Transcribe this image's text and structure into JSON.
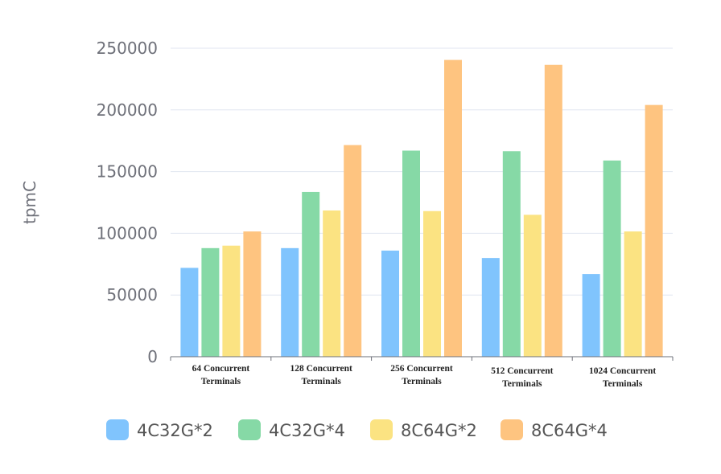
{
  "chart_data": {
    "type": "bar",
    "ylabel": "tpmC",
    "ylim": [
      0,
      250000
    ],
    "yticks": [
      "0",
      "50000",
      "100000",
      "150000",
      "200000",
      "250000"
    ],
    "grid": true,
    "legend_placement": "bottom",
    "categories": [
      [
        "64 Concurrent",
        "Terminals"
      ],
      [
        "128 Concurrent",
        "Terminals"
      ],
      [
        "256 Concurrent",
        "Terminals"
      ],
      [
        "512 Concurrent",
        "Terminals"
      ],
      [
        "1024 Concurrent",
        "Terminals"
      ]
    ],
    "series": [
      {
        "name": "4C32G*2",
        "color": "#80c4fd",
        "values": [
          72000,
          88000,
          86000,
          80000,
          67000
        ]
      },
      {
        "name": "4C32G*4",
        "color": "#86d9a6",
        "values": [
          88000,
          133500,
          167000,
          166500,
          159000
        ]
      },
      {
        "name": "8C64G*2",
        "color": "#fbe382",
        "values": [
          90000,
          118500,
          118000,
          115000,
          101500
        ]
      },
      {
        "name": "8C64G*4",
        "color": "#fec480",
        "values": [
          101500,
          171500,
          240500,
          236500,
          204000
        ]
      }
    ]
  }
}
